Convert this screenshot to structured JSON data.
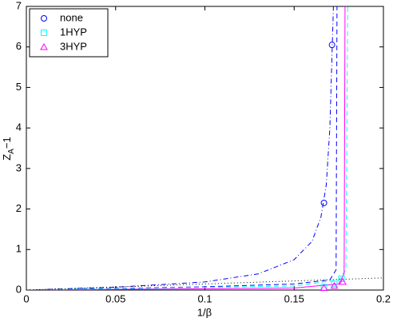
{
  "chart_data": {
    "type": "scatter",
    "xlabel": "1/β",
    "ylabel_parts": [
      "Z",
      "A",
      "−1"
    ],
    "xlim": [
      0,
      0.2
    ],
    "ylim": [
      0,
      7
    ],
    "xticks": [
      0,
      0.05,
      0.1,
      0.15,
      0.2
    ],
    "yticks": [
      0,
      1,
      2,
      3,
      4,
      5,
      6,
      7
    ],
    "legend": "upper-left",
    "series": [
      {
        "name": "none",
        "color": "#0000ff",
        "marker": "circle",
        "x": [
          0.1667,
          0.1712
        ],
        "values": [
          2.15,
          6.05
        ]
      },
      {
        "name": "1HYP",
        "color": "#00ffff",
        "marker": "square",
        "x": [
          0.1667,
          0.1725,
          0.1765
        ],
        "values": [
          0.07,
          0.15,
          0.28
        ]
      },
      {
        "name": "3HYP",
        "color": "#ff00ff",
        "marker": "triangle",
        "x": [
          0.1667,
          0.1725,
          0.1772
        ],
        "values": [
          0.05,
          0.1,
          0.2
        ]
      }
    ],
    "curves": [
      {
        "color": "#0000ff",
        "dash": "6 3 1 3",
        "x": [
          0,
          0.05,
          0.1,
          0.13,
          0.15,
          0.16,
          0.165,
          0.168,
          0.17,
          0.171,
          0.172
        ],
        "y": [
          0,
          0.07,
          0.2,
          0.4,
          0.75,
          1.2,
          1.8,
          2.6,
          4,
          5.5,
          7
        ]
      },
      {
        "color": "#0000ff",
        "dash": "6 4",
        "x": [
          0,
          0.1,
          0.15,
          0.17,
          0.1735,
          0.174
        ],
        "y": [
          0,
          0.08,
          0.15,
          0.25,
          0.5,
          7
        ]
      },
      {
        "color": "#00ffff",
        "dash": "6 4",
        "x": [
          0,
          0.15,
          0.175,
          0.179,
          0.18
        ],
        "y": [
          0,
          0.1,
          0.25,
          0.5,
          7
        ]
      },
      {
        "color": "#ff00ff",
        "dash": "",
        "x": [
          0,
          0.15,
          0.175,
          0.178,
          0.1785
        ],
        "y": [
          0,
          0.05,
          0.15,
          0.4,
          7
        ]
      },
      {
        "color": "#000000",
        "dash": "1 3",
        "x": [
          0,
          0.2
        ],
        "y": [
          0,
          0.3
        ]
      }
    ]
  }
}
